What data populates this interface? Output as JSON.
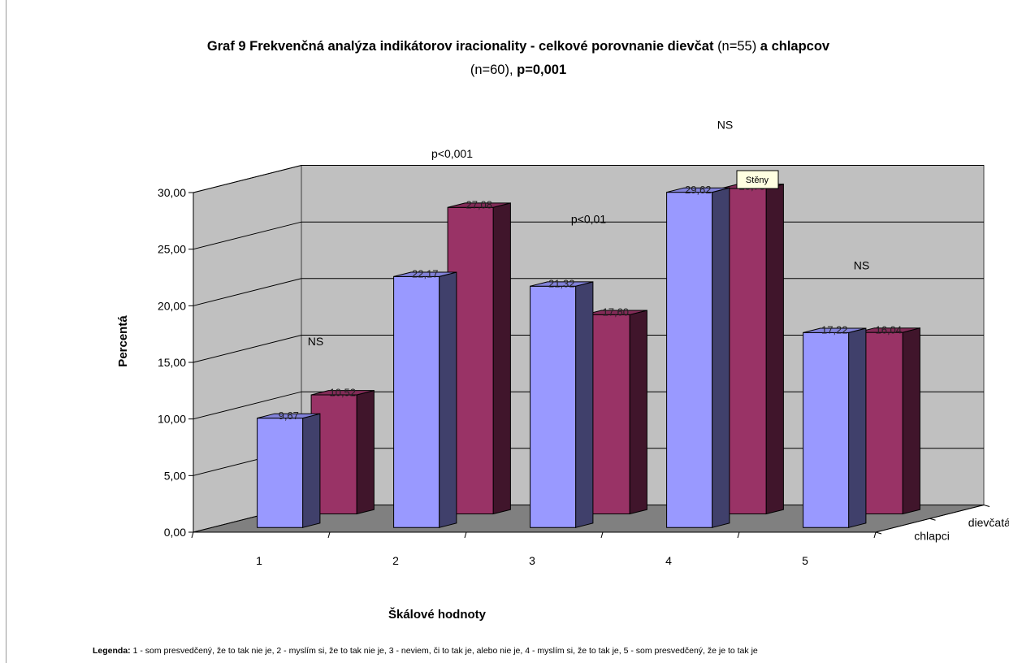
{
  "chart_data": {
    "type": "bar",
    "subtype": "3d-clustered-depth",
    "title_parts": [
      {
        "text": "Graf 9 Frekvenčná analýza indikátorov iracionality - celkové porovnanie dievčat ",
        "bold": true
      },
      {
        "text": "(n=55)",
        "bold": false
      },
      {
        "text": " a chlapcov",
        "bold": true
      }
    ],
    "title_line2_parts": [
      {
        "text": "(n=60), ",
        "bold": false
      },
      {
        "text": "p=0,001",
        "bold": true
      }
    ],
    "xlabel": "Škálové hodnoty",
    "ylabel": "Percentá",
    "categories": [
      "1",
      "2",
      "3",
      "4",
      "5"
    ],
    "ylim": [
      0,
      30
    ],
    "yticks": [
      "0,00",
      "5,00",
      "10,00",
      "15,00",
      "20,00",
      "25,00",
      "30,00"
    ],
    "series": [
      {
        "name": "chlapci",
        "values": [
          9.67,
          22.17,
          21.32,
          29.62,
          17.22
        ],
        "labels": [
          "9,67",
          "22,17",
          "21,32",
          "29,62",
          "17,22"
        ],
        "color": "#9999ff"
      },
      {
        "name": "dievčatá",
        "values": [
          10.52,
          27.08,
          17.6,
          28.75,
          16.04
        ],
        "labels": [
          "10,52",
          "27,08",
          "17,60",
          "28,75",
          "16,04"
        ],
        "color": "#993366"
      }
    ],
    "annotations": [
      {
        "text": "NS",
        "category": "1"
      },
      {
        "text": "p<0,001",
        "category": "2"
      },
      {
        "text": "p<0,01",
        "category": "3"
      },
      {
        "text": "NS",
        "category": "4"
      },
      {
        "text": "NS",
        "category": "5"
      }
    ],
    "tooltip": "Stěny",
    "grid": true,
    "wall_color": "#c0c0c0",
    "floor_color": "#808080",
    "legend": {
      "title": "Legenda:",
      "text": "1 - som presvedčený, že to tak nie je, 2 - myslím si, že to tak nie je, 3 - neviem, či to tak je, alebo nie je, 4 - myslím si, že to tak je, 5 - som presvedčený,  že je to tak je"
    }
  }
}
